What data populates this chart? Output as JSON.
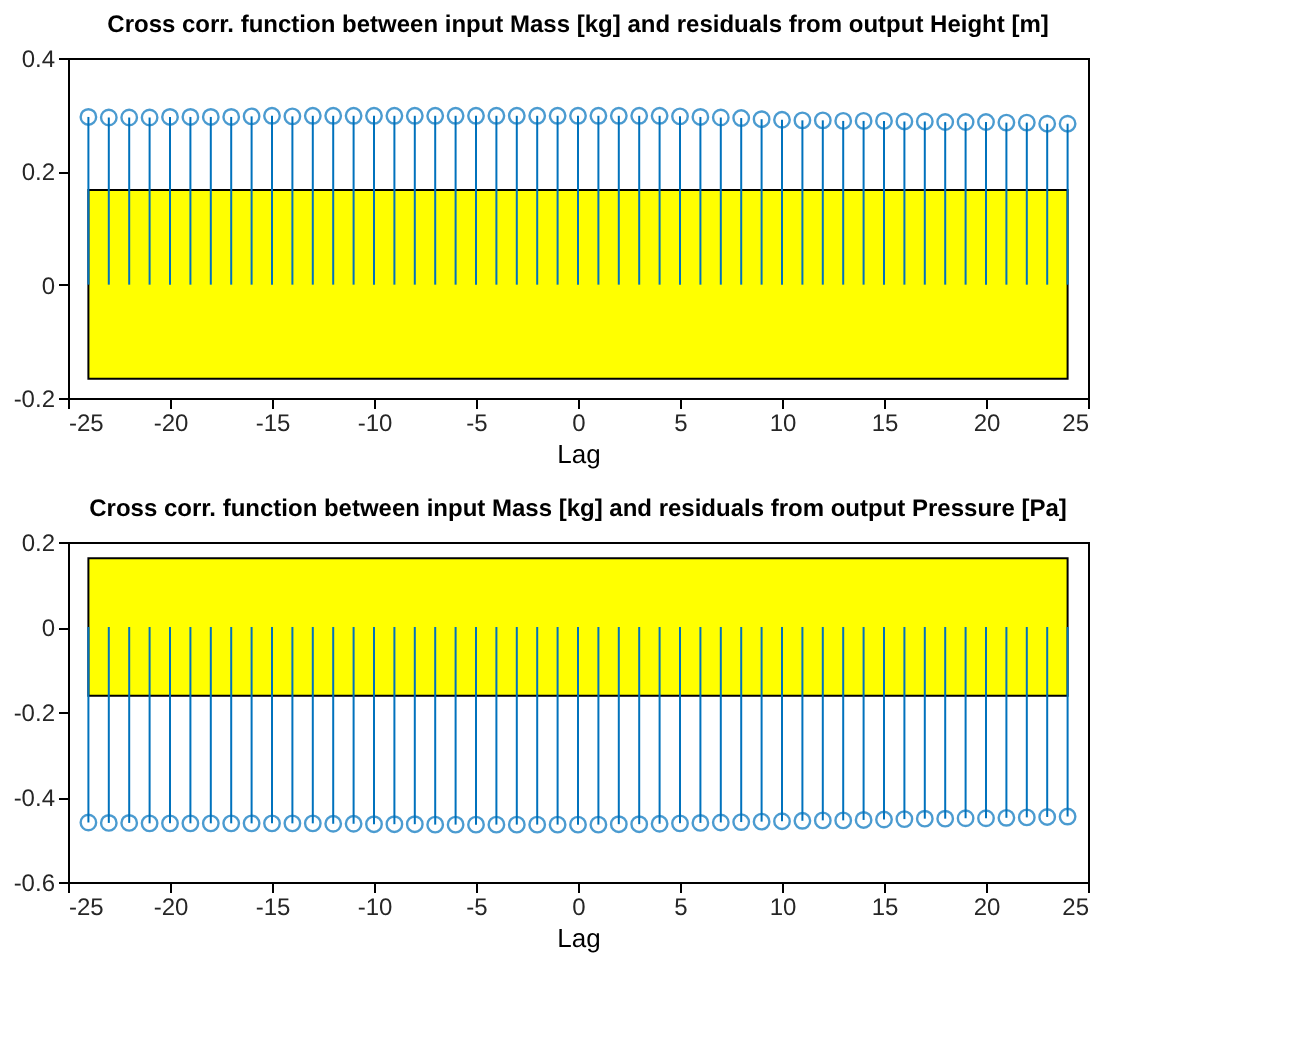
{
  "chart_data": [
    {
      "type": "lollipop",
      "title": "Cross corr. function between input Mass [kg] and residuals from output Height [m]",
      "xlabel": "Lag",
      "x": [
        -24,
        -23,
        -22,
        -21,
        -20,
        -19,
        -18,
        -17,
        -16,
        -15,
        -14,
        -13,
        -12,
        -11,
        -10,
        -9,
        -8,
        -7,
        -6,
        -5,
        -4,
        -3,
        -2,
        -1,
        0,
        1,
        2,
        3,
        4,
        5,
        6,
        7,
        8,
        9,
        10,
        11,
        12,
        13,
        14,
        15,
        16,
        17,
        18,
        19,
        20,
        21,
        22,
        23,
        24
      ],
      "series": [
        {
          "color": "#0072bd",
          "values": [
            0.296,
            0.295,
            0.295,
            0.295,
            0.296,
            0.296,
            0.296,
            0.296,
            0.297,
            0.298,
            0.297,
            0.298,
            0.298,
            0.298,
            0.298,
            0.298,
            0.298,
            0.298,
            0.298,
            0.298,
            0.298,
            0.298,
            0.298,
            0.298,
            0.298,
            0.298,
            0.298,
            0.298,
            0.298,
            0.297,
            0.296,
            0.295,
            0.294,
            0.292,
            0.291,
            0.29,
            0.29,
            0.289,
            0.289,
            0.289,
            0.288,
            0.288,
            0.287,
            0.287,
            0.287,
            0.286,
            0.286,
            0.284,
            0.284
          ]
        }
      ],
      "bands": [
        {
          "axis": "y",
          "from": -0.166,
          "to": 0.167,
          "color": "#ffff00"
        }
      ],
      "xlim": [
        -25,
        25
      ],
      "xticks": [
        -25,
        -20,
        -15,
        -10,
        -5,
        0,
        5,
        10,
        15,
        20,
        25
      ],
      "ylim": [
        -0.2,
        0.4
      ],
      "yticks": [
        -0.2,
        0,
        0.2,
        0.4
      ],
      "marker": "circle",
      "grid": false
    },
    {
      "type": "lollipop",
      "title": "Cross corr. function between input Mass [kg] and residuals from output Pressure [Pa]",
      "xlabel": "Lag",
      "x": [
        -24,
        -23,
        -22,
        -21,
        -20,
        -19,
        -18,
        -17,
        -16,
        -15,
        -14,
        -13,
        -12,
        -11,
        -10,
        -9,
        -8,
        -7,
        -6,
        -5,
        -4,
        -3,
        -2,
        -1,
        0,
        1,
        2,
        3,
        4,
        5,
        6,
        7,
        8,
        9,
        10,
        11,
        12,
        13,
        14,
        15,
        16,
        17,
        18,
        19,
        20,
        21,
        22,
        23,
        24
      ],
      "series": [
        {
          "color": "#0072bd",
          "values": [
            -0.46,
            -0.461,
            -0.461,
            -0.462,
            -0.462,
            -0.462,
            -0.462,
            -0.462,
            -0.462,
            -0.462,
            -0.462,
            -0.462,
            -0.463,
            -0.463,
            -0.464,
            -0.464,
            -0.464,
            -0.465,
            -0.465,
            -0.465,
            -0.465,
            -0.465,
            -0.465,
            -0.465,
            -0.465,
            -0.465,
            -0.464,
            -0.464,
            -0.463,
            -0.462,
            -0.461,
            -0.46,
            -0.459,
            -0.458,
            -0.457,
            -0.456,
            -0.455,
            -0.455,
            -0.454,
            -0.453,
            -0.452,
            -0.451,
            -0.451,
            -0.45,
            -0.45,
            -0.449,
            -0.448,
            -0.447,
            -0.446
          ]
        }
      ],
      "bands": [
        {
          "axis": "y",
          "from": -0.162,
          "to": 0.162,
          "color": "#ffff00"
        }
      ],
      "xlim": [
        -25,
        25
      ],
      "xticks": [
        -25,
        -20,
        -15,
        -10,
        -5,
        0,
        5,
        10,
        15,
        20,
        25
      ],
      "ylim": [
        -0.6,
        0.2
      ],
      "yticks": [
        -0.6,
        -0.4,
        -0.2,
        0,
        0.2
      ],
      "marker": "circle",
      "grid": false
    }
  ]
}
